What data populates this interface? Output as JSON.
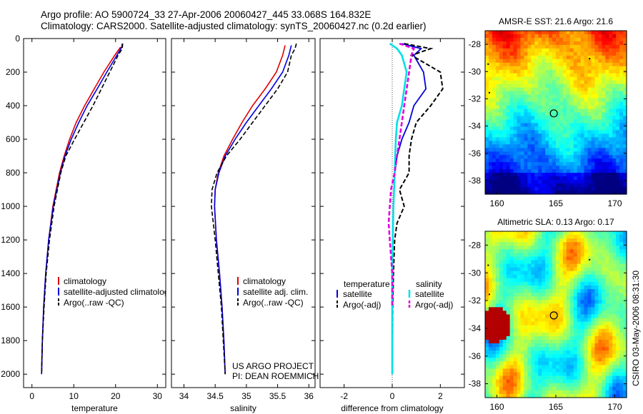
{
  "header": {
    "line1": "Argo profile: AO 5900724_33 27-Apr-2006 20060427_445 33.068S 164.832E",
    "line2": "Climatology: CARS2000. Satellite-adjusted climatology: synTS_20060427.nc (0.2d earlier)"
  },
  "colors": {
    "clim": "#dd0000",
    "sat": "#0000dd",
    "argo": "#000000",
    "sat_sal": "#00e0e8",
    "argo_sal": "#e000e0"
  },
  "chart_data": [
    {
      "type": "line",
      "xlabel": "temperature",
      "xlim": [
        -2,
        32
      ],
      "ylim": [
        2080,
        0
      ],
      "xticks": [
        "0",
        "10",
        "20",
        "30"
      ],
      "yticks": [
        "0",
        "200",
        "400",
        "600",
        "800",
        "1000",
        "1200",
        "1400",
        "1600",
        "1800",
        "2000"
      ],
      "legend": [
        "climatology",
        "satellite-adjusted climatology",
        "Argo(..raw -QC)"
      ],
      "series": [
        {
          "name": "climatology",
          "depth": [
            50,
            100,
            200,
            300,
            400,
            500,
            600,
            700,
            800,
            1000,
            1200,
            1400,
            1600,
            1800,
            2000
          ],
          "values": [
            21.2,
            19.8,
            17.2,
            14.9,
            12.6,
            10.6,
            9.0,
            7.7,
            6.6,
            5.0,
            4.0,
            3.3,
            2.8,
            2.5,
            2.3
          ]
        },
        {
          "name": "satellite-adjusted climatology",
          "depth": [
            30,
            50,
            100,
            200,
            300,
            400,
            500,
            600,
            700,
            800,
            1000,
            1200,
            1400,
            1600,
            1800,
            2000
          ],
          "values": [
            21.6,
            21.5,
            20.3,
            17.9,
            15.6,
            13.2,
            11.2,
            9.4,
            7.9,
            6.8,
            5.1,
            4.0,
            3.3,
            2.8,
            2.5,
            2.3
          ]
        },
        {
          "name": "Argo(..raw -QC)",
          "depth": [
            30,
            60,
            100,
            200,
            300,
            400,
            500,
            600,
            700,
            800,
            1000,
            1200,
            1400,
            1600,
            1800,
            2000
          ],
          "values": [
            21.7,
            21.6,
            20.6,
            18.6,
            16.6,
            14.6,
            12.4,
            10.2,
            8.1,
            6.9,
            5.3,
            4.2,
            3.4,
            2.9,
            2.5,
            2.3
          ]
        }
      ]
    },
    {
      "type": "line",
      "xlabel": "salinity",
      "xlim": [
        33.8,
        36.1
      ],
      "ylim": [
        2080,
        0
      ],
      "xticks": [
        "34",
        "34.5",
        "35",
        "35.5",
        "36"
      ],
      "legend": [
        "climatology",
        "satellite adj. clim.",
        "Argo(..raw -QC)"
      ],
      "series": [
        {
          "name": "climatology",
          "depth": [
            40,
            100,
            200,
            300,
            400,
            500,
            600,
            700,
            800,
            900,
            1000,
            1200,
            1400,
            1600,
            1800,
            2000
          ],
          "values": [
            35.62,
            35.58,
            35.48,
            35.3,
            35.1,
            34.93,
            34.78,
            34.64,
            34.55,
            34.5,
            34.49,
            34.52,
            34.57,
            34.61,
            34.64,
            34.66
          ]
        },
        {
          "name": "satellite adj. clim.",
          "depth": [
            40,
            100,
            200,
            300,
            400,
            500,
            600,
            700,
            800,
            900,
            1000,
            1200,
            1400,
            1600,
            1800,
            2000
          ],
          "values": [
            35.72,
            35.68,
            35.58,
            35.4,
            35.2,
            35.0,
            34.82,
            34.66,
            34.56,
            34.5,
            34.49,
            34.52,
            34.57,
            34.61,
            34.64,
            34.66
          ]
        },
        {
          "name": "Argo(..raw -QC)",
          "depth": [
            30,
            60,
            100,
            200,
            300,
            400,
            500,
            600,
            700,
            800,
            900,
            1000,
            1100,
            1200,
            1400,
            1600,
            1800,
            2000
          ],
          "values": [
            35.8,
            35.78,
            35.72,
            35.66,
            35.5,
            35.3,
            35.1,
            34.9,
            34.68,
            34.53,
            34.45,
            34.44,
            34.47,
            34.5,
            34.55,
            34.6,
            34.63,
            34.66
          ]
        }
      ],
      "annotation": [
        "US ARGO PROJECT",
        "PI: DEAN ROEMMICH"
      ]
    },
    {
      "type": "line",
      "xlabel": "difference from climatology",
      "xlim": [
        -3,
        3
      ],
      "ylim": [
        2080,
        0
      ],
      "xticks": [
        "-2",
        "0",
        "2"
      ],
      "legend_left": {
        "title": "temperature",
        "items": [
          "satellite",
          "Argo(-adj)"
        ]
      },
      "legend_right": {
        "title": "salinity",
        "items": [
          "satellite",
          "Argo(-adj)"
        ]
      },
      "series": [
        {
          "name": "temperature satellite",
          "depth": [
            30,
            60,
            100,
            200,
            300,
            400,
            500,
            600,
            700,
            800,
            1000,
            1200,
            1400,
            1600,
            1800,
            2000
          ],
          "values": [
            0.4,
            1.2,
            0.9,
            1.3,
            1.4,
            0.9,
            0.7,
            0.4,
            0.2,
            0.1,
            0.05,
            0.02,
            0.01,
            0.0,
            0.0,
            0.0
          ]
        },
        {
          "name": "temperature Argo(-adj)",
          "depth": [
            30,
            60,
            100,
            200,
            300,
            400,
            500,
            600,
            700,
            800,
            900,
            1000,
            1100,
            1200,
            1400,
            1600,
            1800,
            2000
          ],
          "values": [
            0.5,
            1.6,
            0.8,
            2.0,
            2.1,
            1.6,
            1.0,
            0.8,
            0.7,
            0.7,
            0.3,
            0.5,
            0.2,
            0.1,
            0.05,
            0.02,
            0.0,
            0.0
          ]
        },
        {
          "name": "salinity satellite",
          "depth": [
            30,
            60,
            100,
            200,
            300,
            400,
            500,
            600,
            800,
            1000,
            1200,
            1400,
            1600,
            1800,
            2000
          ],
          "values": [
            -0.1,
            0.2,
            0.4,
            0.6,
            0.5,
            0.4,
            0.2,
            0.15,
            0.1,
            0.05,
            0.02,
            0.0,
            0.0,
            0.0,
            0.0
          ]
        },
        {
          "name": "salinity Argo(-adj)",
          "depth": [
            30,
            60,
            100,
            200,
            300,
            400,
            500,
            600,
            700,
            800,
            900,
            1000,
            1100,
            1200,
            1400,
            1600
          ],
          "values": [
            0.3,
            0.9,
            0.8,
            0.7,
            0.6,
            0.5,
            0.4,
            0.3,
            0.2,
            0.1,
            -0.05,
            -0.1,
            -0.15,
            -0.1,
            0.0,
            0.0
          ]
        }
      ]
    },
    {
      "type": "heatmap",
      "title": "AMSR-E SST: 21.6 Argo: 21.6",
      "xlim": [
        159,
        171
      ],
      "ylim": [
        -39,
        -27
      ],
      "xticks": [
        "160",
        "165",
        "170"
      ],
      "yticks": [
        "-28",
        "-30",
        "-32",
        "-34",
        "-36",
        "-38"
      ],
      "marker": {
        "lon": 164.83,
        "lat": -33.07
      }
    },
    {
      "type": "heatmap",
      "title": "Altimetric SLA: 0.13 Argo: 0.17",
      "xlim": [
        159,
        171
      ],
      "ylim": [
        -39,
        -27
      ],
      "xticks": [
        "160",
        "165",
        "170"
      ],
      "yticks": [
        "-28",
        "-30",
        "-32",
        "-34",
        "-36",
        "-38"
      ],
      "marker": {
        "lon": 164.83,
        "lat": -33.07
      }
    }
  ],
  "side_note": "CSIRO 03-May-2006 08:31:30"
}
